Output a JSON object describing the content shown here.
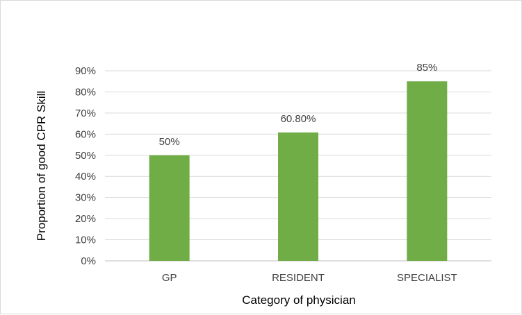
{
  "chart_data": {
    "type": "bar",
    "categories": [
      "GP",
      "RESIDENT",
      "SPECIALIST"
    ],
    "values": [
      50,
      60.8,
      85
    ],
    "data_labels": [
      "50%",
      "60.80%",
      "85%"
    ],
    "xlabel": "Category of physician",
    "ylabel": "Proportion of good CPR Skill",
    "ylim": [
      0,
      90
    ],
    "yticks": [
      "0%",
      "10%",
      "20%",
      "30%",
      "40%",
      "50%",
      "60%",
      "70%",
      "80%",
      "90%"
    ],
    "grid": true,
    "bar_color": "#70ad47",
    "legend": "none"
  }
}
